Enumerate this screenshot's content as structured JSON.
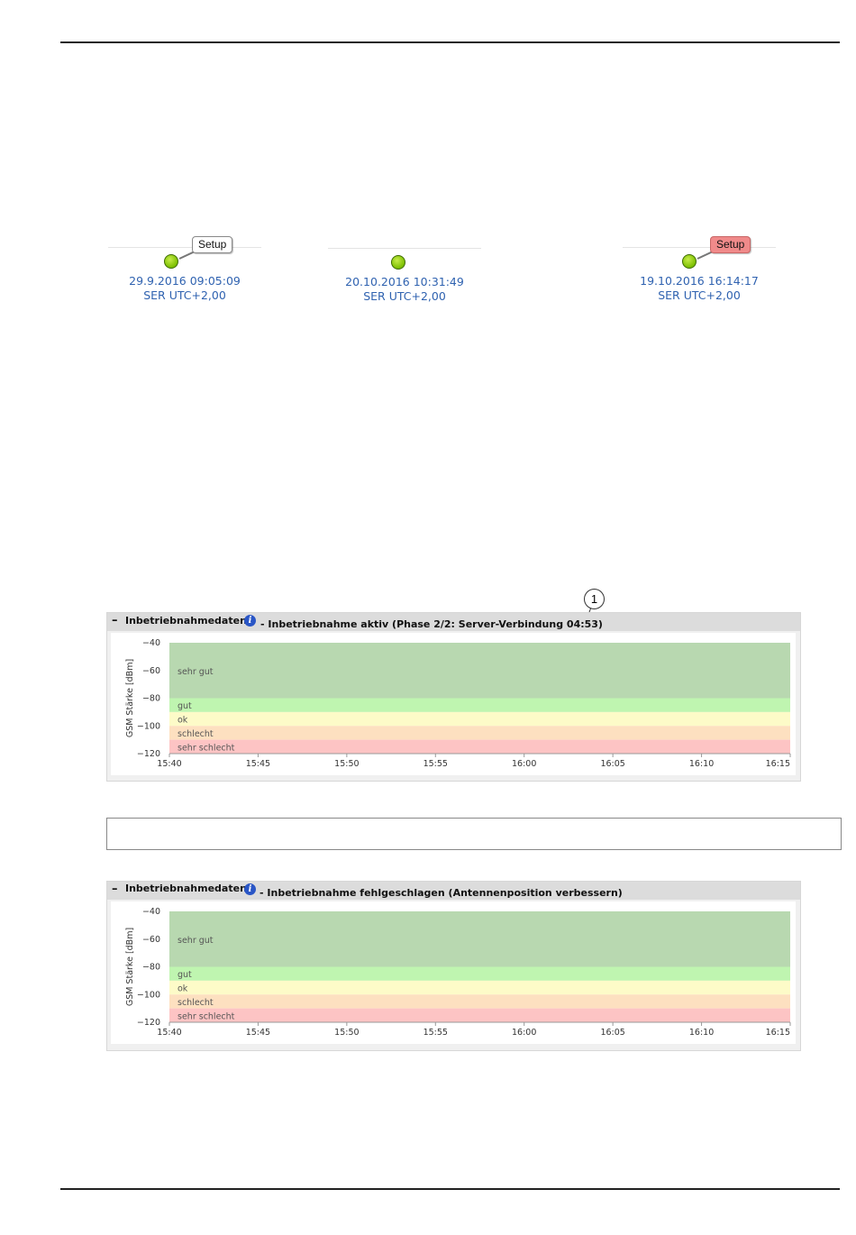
{
  "status_widgets": [
    {
      "timestamp": "29.9.2016 09:05:09",
      "timezone": "SER UTC+2,00",
      "bubble": "Setup",
      "bubble_color": "#ffffff",
      "led_color": "#7cbf00"
    },
    {
      "timestamp": "20.10.2016 10:31:49",
      "timezone": "SER UTC+2,00",
      "bubble": "",
      "led_color": "#7cbf00"
    },
    {
      "timestamp": "19.10.2016 16:14:17",
      "timezone": "SER UTC+2,00",
      "bubble": "Setup",
      "bubble_color": "#f08a8a",
      "led_color": "#7cbf00"
    }
  ],
  "callout_number": "1",
  "panels": [
    {
      "collapse_symbol": "–",
      "title": "Inbetriebnahmedaten",
      "info_icon": "i",
      "status": "- Inbetriebnahme aktiv (Phase 2/2: Server-Verbindung 04:53)"
    },
    {
      "collapse_symbol": "–",
      "title": "Inbetriebnahmedaten",
      "info_icon": "i",
      "status": "- Inbetriebnahme fehlgeschlagen (Antennenposition verbessern)"
    }
  ],
  "chart_data": [
    {
      "type": "area",
      "ylabel": "GSM Stärke [dBm]",
      "xlabel": "",
      "ylim": [
        -120,
        -40
      ],
      "y_ticks": [
        -40,
        -60,
        -80,
        -100,
        -120
      ],
      "x_ticks": [
        "15:40",
        "15:45",
        "15:50",
        "15:55",
        "16:00",
        "16:05",
        "16:10",
        "16:15"
      ],
      "bands": [
        {
          "name": "sehr gut",
          "from": -80,
          "to": -40,
          "color": "#b8d8b0"
        },
        {
          "name": "gut",
          "from": -90,
          "to": -80,
          "color": "#bff5b0"
        },
        {
          "name": "ok",
          "from": -100,
          "to": -90,
          "color": "#fdfbc8"
        },
        {
          "name": "schlecht",
          "from": -110,
          "to": -100,
          "color": "#fde0c0"
        },
        {
          "name": "sehr schlecht",
          "from": -120,
          "to": -110,
          "color": "#fdc4c4"
        }
      ],
      "series": []
    },
    {
      "type": "area",
      "ylabel": "GSM Stärke [dBm]",
      "xlabel": "",
      "ylim": [
        -120,
        -40
      ],
      "y_ticks": [
        -40,
        -60,
        -80,
        -100,
        -120
      ],
      "x_ticks": [
        "15:40",
        "15:45",
        "15:50",
        "15:55",
        "16:00",
        "16:05",
        "16:10",
        "16:15"
      ],
      "bands": [
        {
          "name": "sehr gut",
          "from": -80,
          "to": -40,
          "color": "#b8d8b0"
        },
        {
          "name": "gut",
          "from": -90,
          "to": -80,
          "color": "#bff5b0"
        },
        {
          "name": "ok",
          "from": -100,
          "to": -90,
          "color": "#fdfbc8"
        },
        {
          "name": "schlecht",
          "from": -110,
          "to": -100,
          "color": "#fde0c0"
        },
        {
          "name": "sehr schlecht",
          "from": -120,
          "to": -110,
          "color": "#fdc4c4"
        }
      ],
      "series": []
    }
  ]
}
